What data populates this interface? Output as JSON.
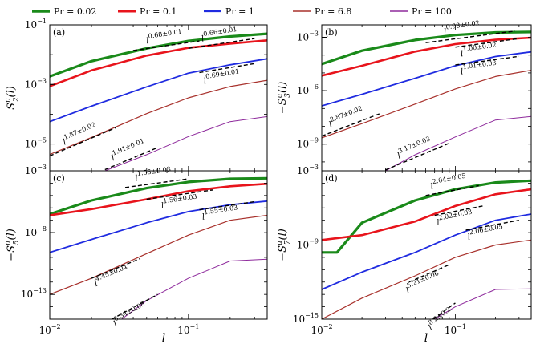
{
  "legend": [
    {
      "label": "Pr = 0.02",
      "color": "#1a8a1a",
      "width": 3.2
    },
    {
      "label": "Pr = 0.1",
      "color": "#e8141c",
      "width": 2.6
    },
    {
      "label": "Pr = 1",
      "color": "#1f2be0",
      "width": 1.8
    },
    {
      "label": "Pr = 6.8",
      "color": "#a8312c",
      "width": 1.2
    },
    {
      "label": "Pr = 100",
      "color": "#8e2a9c",
      "width": 1.0
    }
  ],
  "x_axis": {
    "label": "l",
    "ticks": [
      "10^-2",
      "10^-1"
    ],
    "range": [
      0.01,
      0.37
    ],
    "scale": "log"
  },
  "chart_data": [
    {
      "panel": "(a)",
      "type": "line",
      "ylabel": "S_2^u(l)",
      "x": [
        0.01,
        0.37
      ],
      "xscale": "log",
      "ylim_log10": [
        -5.9,
        -1.0
      ],
      "yticks": [
        "10^-1",
        "10^-3",
        "10^-5"
      ],
      "series": [
        {
          "name": "Pr = 0.02",
          "log10_y": [
            [
              0.01,
              -2.73
            ],
            [
              0.02,
              -2.22
            ],
            [
              0.05,
              -1.79
            ],
            [
              0.1,
              -1.54
            ],
            [
              0.2,
              -1.39
            ],
            [
              0.37,
              -1.3
            ]
          ]
        },
        {
          "name": "Pr = 0.1",
          "log10_y": [
            [
              0.01,
              -3.06
            ],
            [
              0.02,
              -2.53
            ],
            [
              0.05,
              -2.03
            ],
            [
              0.1,
              -1.77
            ],
            [
              0.2,
              -1.63
            ],
            [
              0.37,
              -1.52
            ]
          ]
        },
        {
          "name": "Pr = 1",
          "log10_y": [
            [
              0.01,
              -4.25
            ],
            [
              0.02,
              -3.73
            ],
            [
              0.05,
              -3.08
            ],
            [
              0.1,
              -2.62
            ],
            [
              0.2,
              -2.34
            ],
            [
              0.37,
              -2.14
            ]
          ]
        },
        {
          "name": "Pr = 6.8",
          "log10_y": [
            [
              0.01,
              -5.35
            ],
            [
              0.02,
              -4.78
            ],
            [
              0.05,
              -3.98
            ],
            [
              0.1,
              -3.45
            ],
            [
              0.2,
              -3.07
            ],
            [
              0.37,
              -2.86
            ]
          ]
        },
        {
          "name": "Pr = 100",
          "log10_y": [
            [
              0.025,
              -5.9
            ],
            [
              0.05,
              -5.36
            ],
            [
              0.1,
              -4.75
            ],
            [
              0.2,
              -4.25
            ],
            [
              0.37,
              -4.08
            ]
          ]
        }
      ],
      "fits": [
        {
          "label": "l^{0.68±0.01}",
          "x": [
            0.04,
            0.12
          ],
          "log10_y": [
            -1.86,
            -1.54
          ]
        },
        {
          "label": "l^{0.66±0.01}",
          "x": [
            0.1,
            0.3
          ],
          "log10_y": [
            -1.79,
            -1.46
          ]
        },
        {
          "label": "l^{0.69±0.01}",
          "x": [
            0.12,
            0.3
          ],
          "log10_y": [
            -2.6,
            -2.3
          ]
        },
        {
          "label": "l^{1.87±0.02}",
          "x": [
            0.01,
            0.03
          ],
          "log10_y": [
            -5.4,
            -4.45
          ]
        },
        {
          "label": "l^{1.91±0.01}",
          "x": [
            0.025,
            0.06
          ],
          "log10_y": [
            -5.86,
            -5.12
          ]
        }
      ]
    },
    {
      "panel": "(b)",
      "type": "line",
      "ylabel": "-S_3^u(l)",
      "x": [
        0.01,
        0.37
      ],
      "xscale": "log",
      "ylim_log10": [
        -10.5,
        -2.3
      ],
      "yticks": [
        "10^-3",
        "10^-6",
        "10^-9"
      ],
      "series": [
        {
          "name": "Pr = 0.02",
          "log10_y": [
            [
              0.01,
              -4.5
            ],
            [
              0.02,
              -3.75
            ],
            [
              0.05,
              -3.15
            ],
            [
              0.1,
              -2.87
            ],
            [
              0.2,
              -2.73
            ],
            [
              0.37,
              -2.7
            ]
          ]
        },
        {
          "name": "Pr = 0.1",
          "log10_y": [
            [
              0.01,
              -5.15
            ],
            [
              0.02,
              -4.6
            ],
            [
              0.05,
              -3.8
            ],
            [
              0.1,
              -3.38
            ],
            [
              0.2,
              -3.14
            ],
            [
              0.37,
              -3.02
            ]
          ]
        },
        {
          "name": "Pr = 1",
          "log10_y": [
            [
              0.01,
              -6.85
            ],
            [
              0.02,
              -6.2
            ],
            [
              0.05,
              -5.3
            ],
            [
              0.1,
              -4.6
            ],
            [
              0.2,
              -4.08
            ],
            [
              0.37,
              -3.82
            ]
          ]
        },
        {
          "name": "Pr = 6.8",
          "log10_y": [
            [
              0.01,
              -8.65
            ],
            [
              0.02,
              -7.85
            ],
            [
              0.05,
              -6.75
            ],
            [
              0.1,
              -5.9
            ],
            [
              0.2,
              -5.2
            ],
            [
              0.37,
              -4.85
            ]
          ]
        },
        {
          "name": "Pr = 100",
          "log10_y": [
            [
              0.03,
              -10.5
            ],
            [
              0.05,
              -9.6
            ],
            [
              0.1,
              -8.6
            ],
            [
              0.2,
              -7.65
            ],
            [
              0.37,
              -7.45
            ]
          ]
        }
      ],
      "fits": [
        {
          "label": "l^{0.98±0.02}",
          "x": [
            0.06,
            0.28
          ],
          "log10_y": [
            -3.3,
            -2.65
          ]
        },
        {
          "label": "l^{1.00±0.02}",
          "x": [
            0.1,
            0.3
          ],
          "log10_y": [
            -3.55,
            -3.07
          ]
        },
        {
          "label": "l^{1.01±0.03}",
          "x": [
            0.1,
            0.3
          ],
          "log10_y": [
            -4.55,
            -4.07
          ]
        },
        {
          "label": "l^{2.87±0.02}",
          "x": [
            0.01,
            0.027
          ],
          "log10_y": [
            -8.55,
            -7.3
          ]
        },
        {
          "label": "l^{3.17±0.03}",
          "x": [
            0.03,
            0.09
          ],
          "log10_y": [
            -10.45,
            -8.95
          ]
        }
      ]
    },
    {
      "panel": "(c)",
      "type": "line",
      "ylabel": "-S_5^u(l)",
      "x": [
        0.01,
        0.37
      ],
      "xscale": "log",
      "ylim_log10": [
        -15.0,
        -3.0
      ],
      "yticks": [
        "10^-3",
        "10^-8",
        "10^-13"
      ],
      "series": [
        {
          "name": "Pr = 0.02",
          "log10_y": [
            [
              0.01,
              -6.5
            ],
            [
              0.02,
              -5.4
            ],
            [
              0.05,
              -4.4
            ],
            [
              0.1,
              -3.9
            ],
            [
              0.2,
              -3.65
            ],
            [
              0.37,
              -3.6
            ]
          ]
        },
        {
          "name": "Pr = 0.1",
          "log10_y": [
            [
              0.01,
              -6.6
            ],
            [
              0.02,
              -6.1
            ],
            [
              0.05,
              -5.3
            ],
            [
              0.1,
              -4.65
            ],
            [
              0.2,
              -4.25
            ],
            [
              0.37,
              -4.05
            ]
          ]
        },
        {
          "name": "Pr = 1",
          "log10_y": [
            [
              0.01,
              -9.6
            ],
            [
              0.02,
              -8.55
            ],
            [
              0.05,
              -7.2
            ],
            [
              0.1,
              -6.3
            ],
            [
              0.2,
              -5.75
            ],
            [
              0.37,
              -5.45
            ]
          ]
        },
        {
          "name": "Pr = 6.8",
          "log10_y": [
            [
              0.01,
              -13.0
            ],
            [
              0.02,
              -11.7
            ],
            [
              0.05,
              -9.7
            ],
            [
              0.1,
              -8.2
            ],
            [
              0.2,
              -7.0
            ],
            [
              0.37,
              -6.6
            ]
          ]
        },
        {
          "name": "Pr = 100",
          "log10_y": [
            [
              0.033,
              -15.0
            ],
            [
              0.05,
              -13.5
            ],
            [
              0.1,
              -11.7
            ],
            [
              0.2,
              -10.3
            ],
            [
              0.37,
              -10.15
            ]
          ]
        }
      ],
      "fits": [
        {
          "label": "l^{1.55±0.03}",
          "x": [
            0.035,
            0.1
          ],
          "log10_y": [
            -4.35,
            -3.65
          ]
        },
        {
          "label": "l^{1.56±0.03}",
          "x": [
            0.05,
            0.15
          ],
          "log10_y": [
            -5.3,
            -4.55
          ]
        },
        {
          "label": "l^{1.55±0.03}",
          "x": [
            0.12,
            0.3
          ],
          "log10_y": [
            -6.15,
            -5.5
          ]
        },
        {
          "label": "l^{4.45±0.04}",
          "x": [
            0.02,
            0.045
          ],
          "log10_y": [
            -11.7,
            -10.1
          ]
        },
        {
          "label": "l^{6.34±0.08}",
          "x": [
            0.028,
            0.06
          ],
          "log10_y": [
            -15.0,
            -13.0
          ]
        }
      ]
    },
    {
      "panel": "(d)",
      "type": "line",
      "ylabel": "-S_7^u(l)",
      "x": [
        0.01,
        0.37
      ],
      "xscale": "log",
      "ylim_log10": [
        -15.0,
        -3.0
      ],
      "yticks": [
        "10^-3",
        "10^-9",
        "10^-15"
      ],
      "series": [
        {
          "name": "Pr = 0.02",
          "log10_y": [
            [
              0.01,
              -9.6
            ],
            [
              0.013,
              -9.6
            ],
            [
              0.02,
              -7.2
            ],
            [
              0.05,
              -5.4
            ],
            [
              0.1,
              -4.5
            ],
            [
              0.2,
              -3.95
            ],
            [
              0.37,
              -3.8
            ]
          ]
        },
        {
          "name": "Pr = 0.1",
          "log10_y": [
            [
              0.01,
              -8.6
            ],
            [
              0.02,
              -8.2
            ],
            [
              0.05,
              -7.1
            ],
            [
              0.1,
              -5.85
            ],
            [
              0.2,
              -4.9
            ],
            [
              0.37,
              -4.5
            ]
          ]
        },
        {
          "name": "Pr = 1",
          "log10_y": [
            [
              0.01,
              -12.6
            ],
            [
              0.02,
              -11.2
            ],
            [
              0.05,
              -9.6
            ],
            [
              0.1,
              -8.2
            ],
            [
              0.2,
              -7.0
            ],
            [
              0.37,
              -6.5
            ]
          ]
        },
        {
          "name": "Pr = 6.8",
          "log10_y": [
            [
              0.01,
              -15.0
            ],
            [
              0.02,
              -13.3
            ],
            [
              0.05,
              -11.5
            ],
            [
              0.1,
              -10.0
            ],
            [
              0.2,
              -9.0
            ],
            [
              0.37,
              -8.6
            ]
          ]
        },
        {
          "name": "Pr = 100",
          "log10_y": [
            [
              0.07,
              -15.0
            ],
            [
              0.1,
              -14.0
            ],
            [
              0.2,
              -12.6
            ],
            [
              0.37,
              -12.55
            ]
          ]
        }
      ],
      "fits": [
        {
          "label": "l^{2.04±0.05}",
          "x": [
            0.06,
            0.15
          ],
          "log10_y": [
            -5.0,
            -4.2
          ]
        },
        {
          "label": "l^{2.02±0.03}",
          "x": [
            0.07,
            0.16
          ],
          "log10_y": [
            -6.6,
            -5.85
          ]
        },
        {
          "label": "l^{2.06±0.05}",
          "x": [
            0.12,
            0.3
          ],
          "log10_y": [
            -7.8,
            -7.0
          ]
        },
        {
          "label": "l^{5.21±0.06}",
          "x": [
            0.045,
            0.09
          ],
          "log10_y": [
            -12.0,
            -10.6
          ]
        },
        {
          "label": "l^{8.2±0.2}",
          "x": [
            0.068,
            0.1
          ],
          "log10_y": [
            -15.0,
            -13.7
          ]
        }
      ]
    }
  ]
}
